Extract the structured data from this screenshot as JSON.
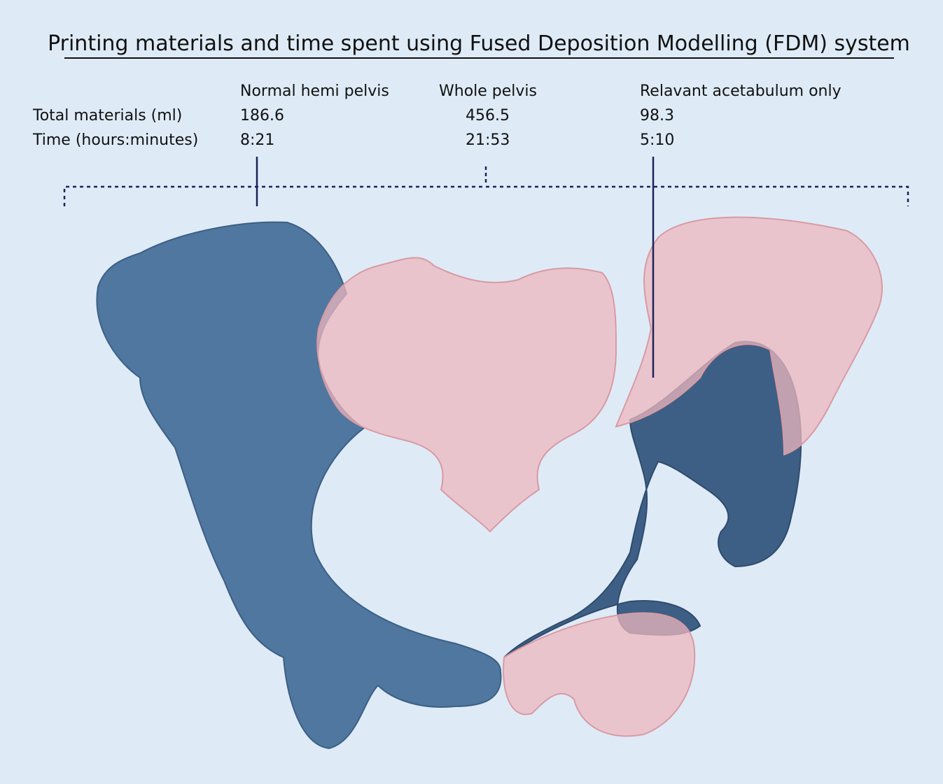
{
  "header": {
    "title": "Printing materials and time spent using Fused Deposition Modelling (FDM) system"
  },
  "table": {
    "columns": [
      "Normal hemi pelvis",
      "Whole pelvis",
      "Relavant acetabulum only"
    ],
    "rows": [
      {
        "label": "Total materials (ml)",
        "cells": [
          "186.6",
          "456.5",
          "98.3"
        ]
      },
      {
        "label": "Time (hours:minutes)",
        "cells": [
          "8:21",
          "21:53",
          "5:10"
        ]
      }
    ]
  }
}
